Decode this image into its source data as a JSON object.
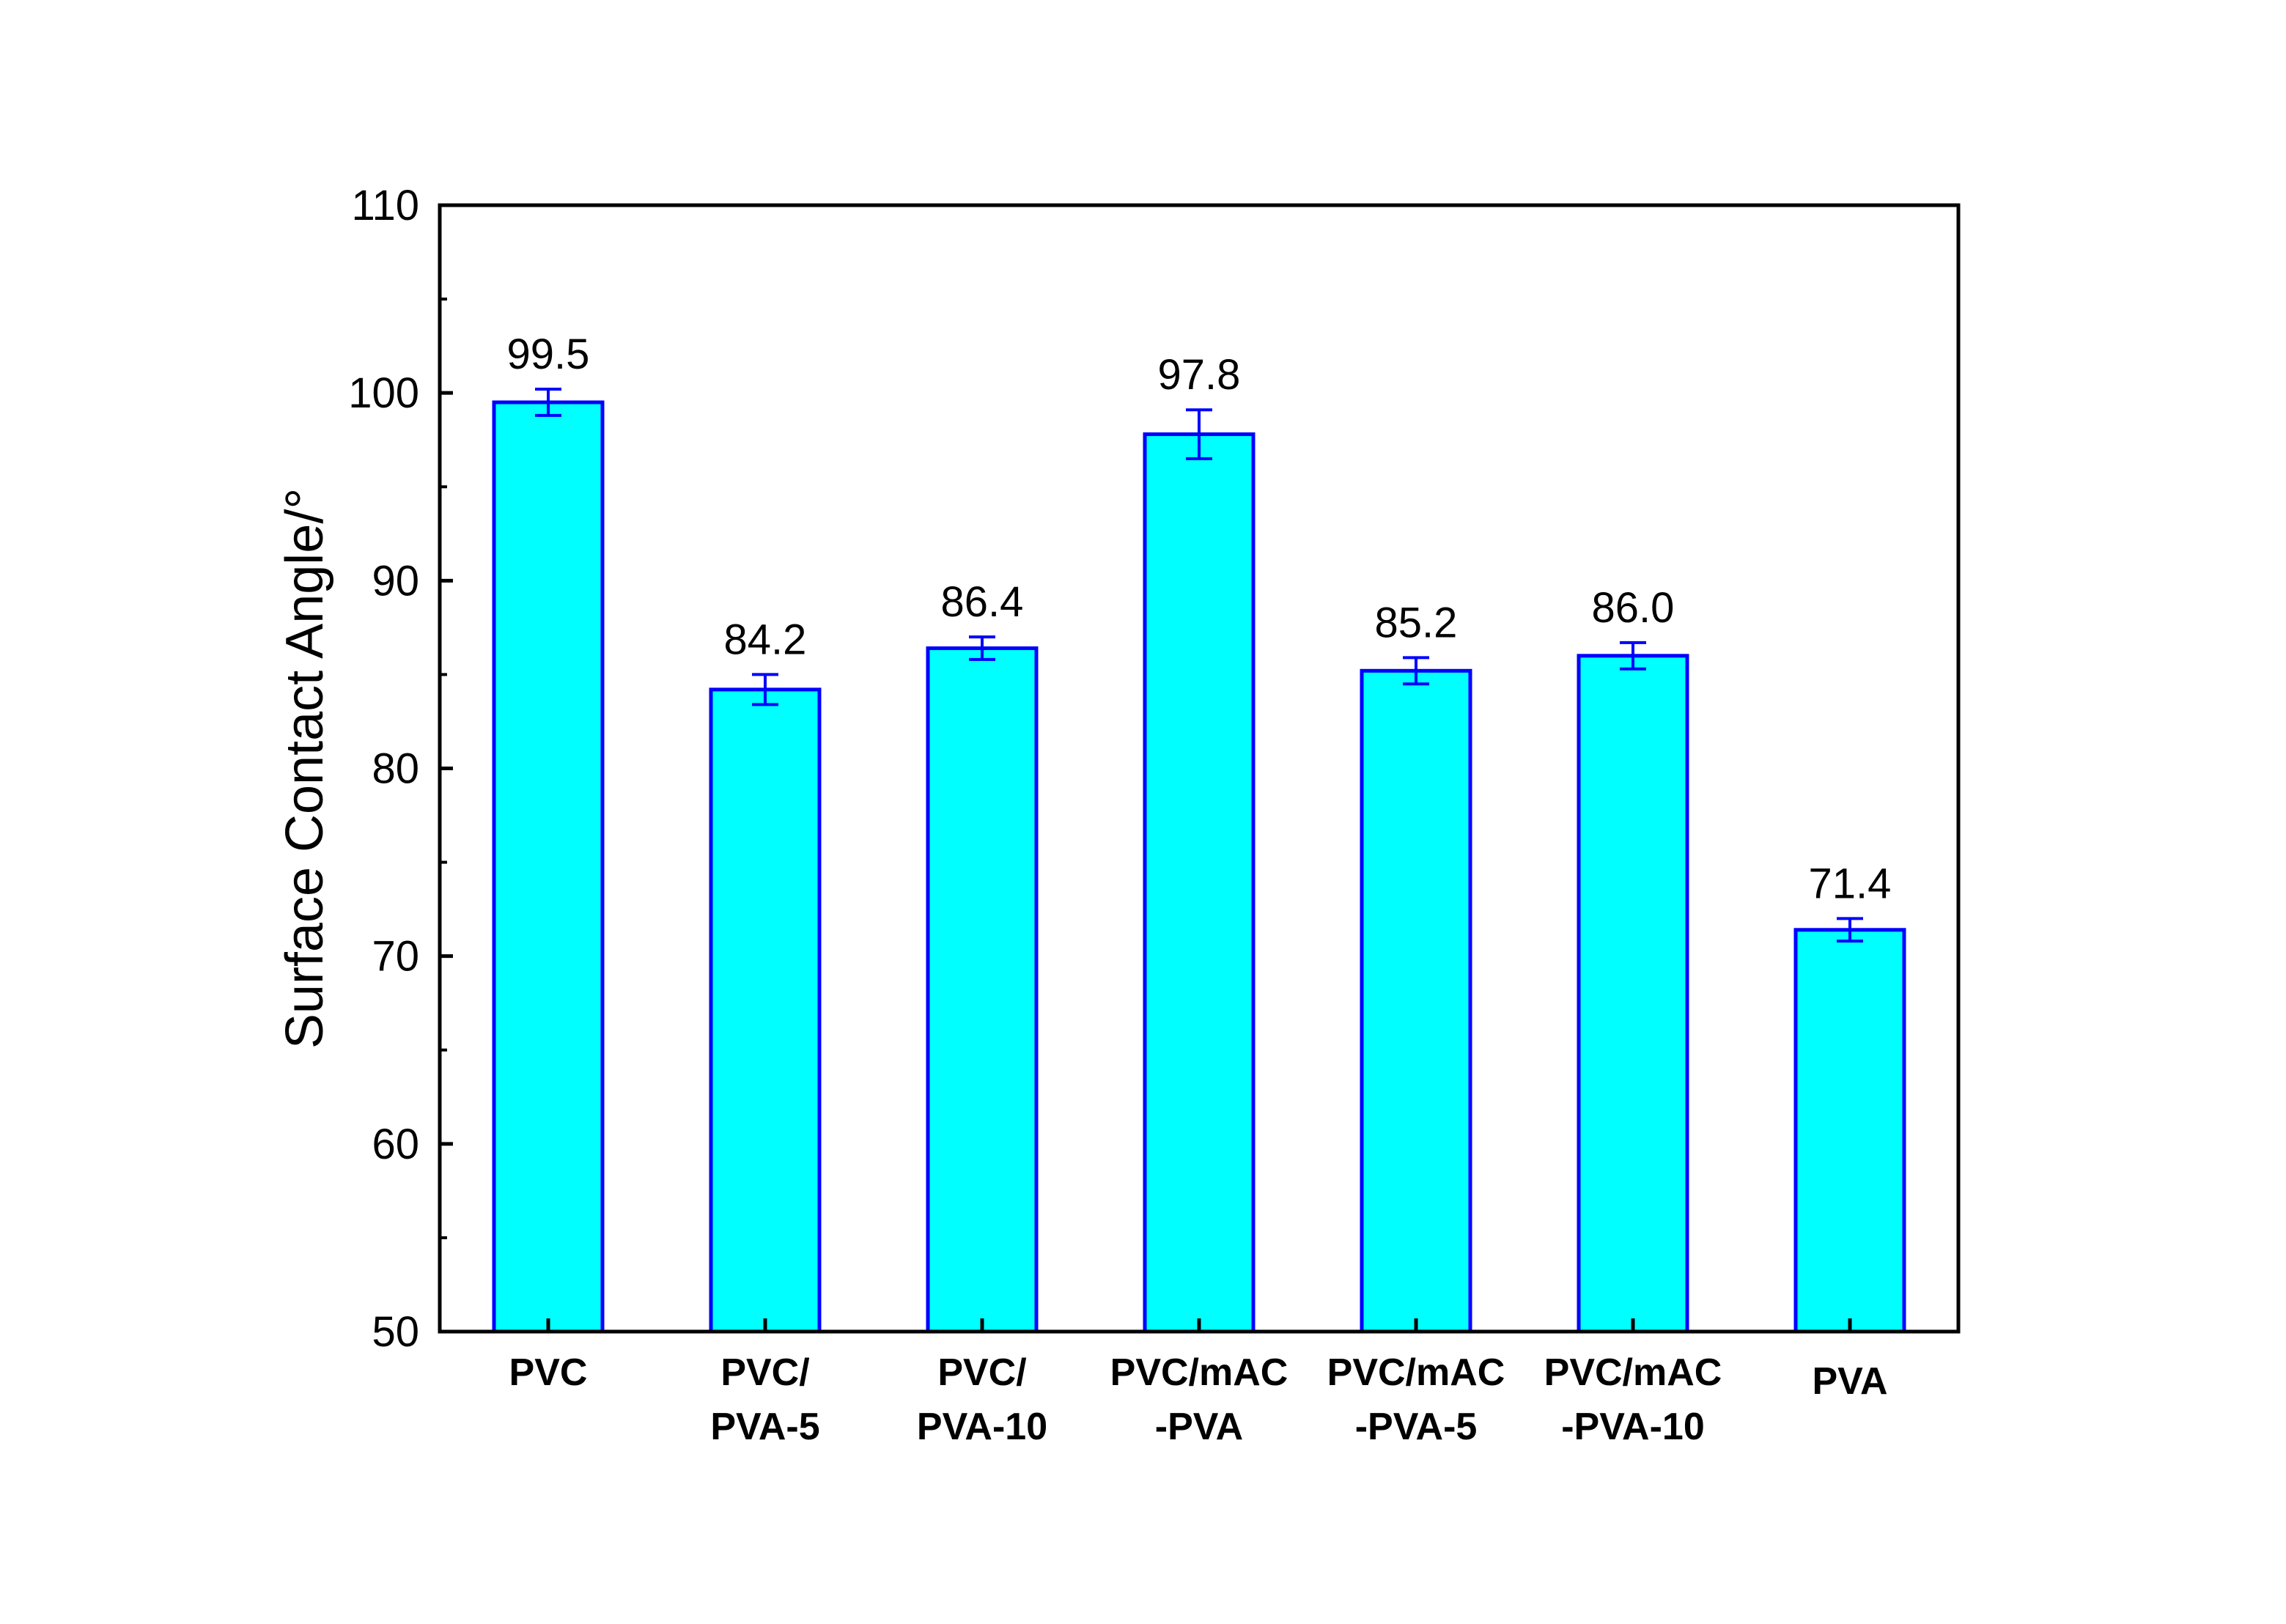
{
  "chart_data": {
    "type": "bar",
    "title": "",
    "xlabel": "",
    "ylabel": "Surface Contact Angle/°",
    "ylim": [
      50,
      110
    ],
    "yticks": [
      50,
      60,
      70,
      80,
      90,
      100,
      110
    ],
    "grid": false,
    "legend": "none",
    "categories": [
      [
        "PVC"
      ],
      [
        "PVC/",
        "PVA-5"
      ],
      [
        "PVC/",
        "PVA-10"
      ],
      [
        "PVC/mAC",
        "-PVA"
      ],
      [
        "PVC/mAC",
        "-PVA-5"
      ],
      [
        "PVC/mAC",
        "-PVA-10"
      ],
      [
        "PVA"
      ]
    ],
    "values": [
      99.5,
      84.2,
      86.4,
      97.8,
      85.2,
      86.0,
      71.4
    ],
    "value_labels": [
      "99.5",
      "84.2",
      "86.4",
      "97.8",
      "85.2",
      "86.0",
      "71.4"
    ],
    "error": [
      0.7,
      0.8,
      0.6,
      1.3,
      0.7,
      0.7,
      0.6
    ],
    "colors": {
      "bar_fill": "#00FFFF",
      "bar_stroke": "#0000FF",
      "error_bar": "#0000FF",
      "axis": "#000000"
    }
  }
}
